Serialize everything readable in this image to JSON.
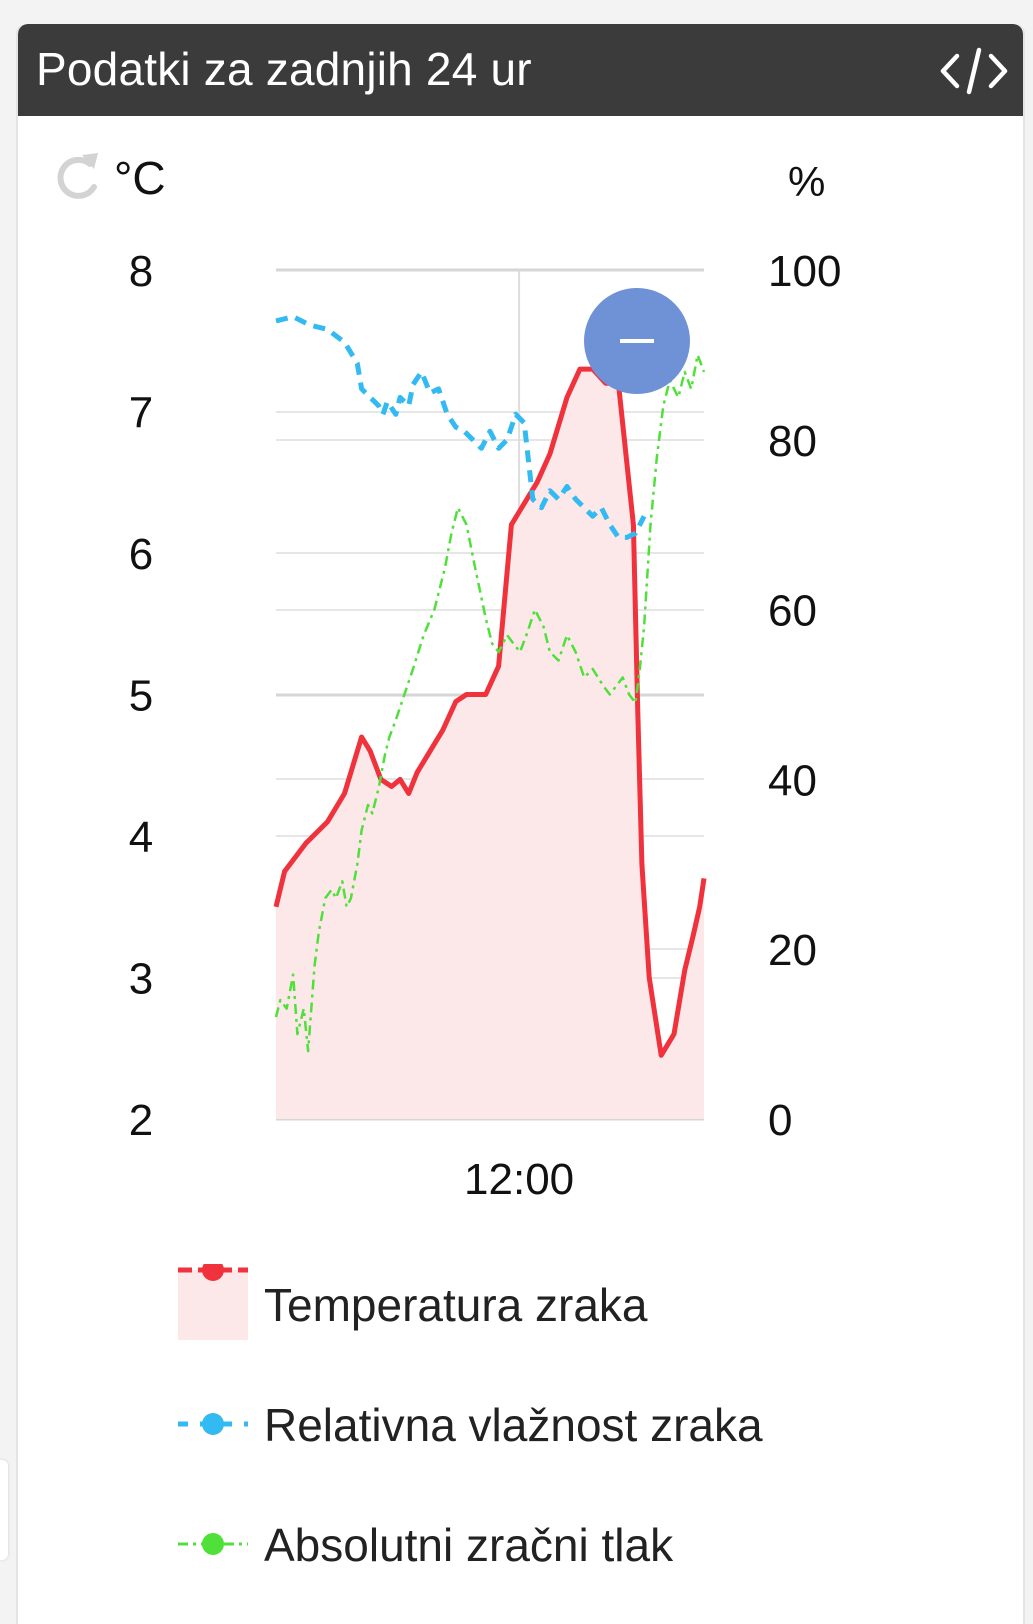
{
  "header": {
    "title": "Podatki za zadnjih 24 ur",
    "code_icon": "code-icon"
  },
  "controls": {
    "refresh_icon": "refresh-icon",
    "zoom_out_icon": "minus-icon"
  },
  "colors": {
    "header_bg": "#3b3b3b",
    "temperature": "#f0323c",
    "temperature_fill": "#fde8e9",
    "humidity": "#33baf2",
    "pressure": "#4fe03a",
    "zoom_button": "#6f92d6"
  },
  "chart_data": {
    "type": "line",
    "grid": true,
    "x_ticks": [
      "12:00"
    ],
    "left_axis": {
      "unit": "°C",
      "ticks": [
        "2",
        "3",
        "4",
        "5",
        "6",
        "7",
        "8"
      ],
      "range": [
        2,
        8
      ]
    },
    "right_axis": {
      "unit": "%",
      "ticks": [
        "0",
        "20",
        "40",
        "60",
        "80",
        "100"
      ],
      "range": [
        0,
        100
      ]
    },
    "legend_position": "bottom",
    "series": [
      {
        "name": "Temperatura zraka",
        "axis": "left",
        "style": "solid-area",
        "t": [
          0,
          0.02,
          0.07,
          0.12,
          0.16,
          0.2,
          0.22,
          0.245,
          0.27,
          0.29,
          0.31,
          0.33,
          0.36,
          0.39,
          0.42,
          0.445,
          0.49,
          0.52,
          0.55,
          0.57,
          0.61,
          0.64,
          0.68,
          0.71,
          0.74,
          0.77,
          0.8,
          0.835,
          0.845,
          0.855,
          0.872,
          0.9,
          0.93,
          0.955,
          0.975,
          0.99,
          1.0
        ],
        "values": [
          3.5,
          3.75,
          3.95,
          4.1,
          4.3,
          4.7,
          4.6,
          4.4,
          4.35,
          4.4,
          4.3,
          4.45,
          4.6,
          4.75,
          4.95,
          5,
          5,
          5.2,
          6.2,
          6.3,
          6.5,
          6.7,
          7.1,
          7.3,
          7.3,
          7.2,
          7.2,
          6.2,
          4.9,
          3.8,
          3,
          2.45,
          2.6,
          3.05,
          3.3,
          3.5,
          3.7
        ]
      },
      {
        "name": "Relativna vlažnost zraka",
        "axis": "right",
        "style": "dashed",
        "t": [
          0,
          0.04,
          0.08,
          0.12,
          0.16,
          0.19,
          0.2,
          0.24,
          0.25,
          0.26,
          0.28,
          0.29,
          0.31,
          0.32,
          0.34,
          0.36,
          0.38,
          0.4,
          0.42,
          0.44,
          0.46,
          0.48,
          0.5,
          0.52,
          0.54,
          0.56,
          0.58,
          0.6,
          0.62,
          0.64,
          0.66,
          0.68,
          0.7,
          0.72,
          0.74,
          0.76,
          0.78,
          0.8,
          0.82,
          0.84,
          0.86
        ],
        "values": [
          94,
          94.5,
          93.5,
          93,
          91.5,
          89,
          86,
          84,
          83,
          84.5,
          83,
          85,
          84,
          86.5,
          88,
          85.5,
          86,
          83,
          81.5,
          81,
          80,
          79,
          81,
          79,
          80,
          83,
          82,
          73,
          72,
          74,
          73,
          74.5,
          73,
          72,
          71,
          72,
          70,
          68.5,
          68.5,
          69,
          71
        ]
      },
      {
        "name": "Absolutni zračni tlak",
        "axis": "right",
        "style": "dotted",
        "t": [
          0,
          0.01,
          0.025,
          0.04,
          0.05,
          0.065,
          0.075,
          0.09,
          0.1,
          0.115,
          0.13,
          0.14,
          0.155,
          0.165,
          0.175,
          0.19,
          0.2,
          0.215,
          0.225,
          0.24,
          0.255,
          0.265,
          0.28,
          0.3,
          0.32,
          0.345,
          0.37,
          0.395,
          0.41,
          0.425,
          0.445,
          0.465,
          0.49,
          0.505,
          0.52,
          0.54,
          0.555,
          0.57,
          0.585,
          0.605,
          0.625,
          0.64,
          0.66,
          0.68,
          0.7,
          0.72,
          0.74,
          0.765,
          0.78,
          0.81,
          0.825,
          0.84,
          0.85,
          0.86,
          0.875,
          0.89,
          0.905,
          0.92,
          0.94,
          0.955,
          0.97,
          0.985,
          1.0
        ],
        "values": [
          12,
          14,
          13,
          17,
          10,
          13,
          8,
          18,
          22,
          26,
          27,
          26,
          28,
          25,
          26,
          30,
          34,
          37,
          36,
          39,
          43,
          45,
          47,
          50,
          53,
          57,
          60,
          65,
          69,
          72,
          70,
          65,
          59,
          56,
          55,
          57,
          56,
          55,
          57,
          60,
          58,
          55,
          54,
          57,
          55,
          52,
          53,
          51,
          50,
          52,
          50,
          49,
          53,
          58,
          70,
          78,
          84,
          87,
          85,
          88,
          86,
          90,
          88
        ]
      }
    ]
  },
  "legend": [
    {
      "label": "Temperatura zraka",
      "icon": "temperature-legend-icon"
    },
    {
      "label": "Relativna vlažnost zraka",
      "icon": "humidity-legend-icon"
    },
    {
      "label": "Absolutni zračni tlak",
      "icon": "pressure-legend-icon"
    }
  ]
}
